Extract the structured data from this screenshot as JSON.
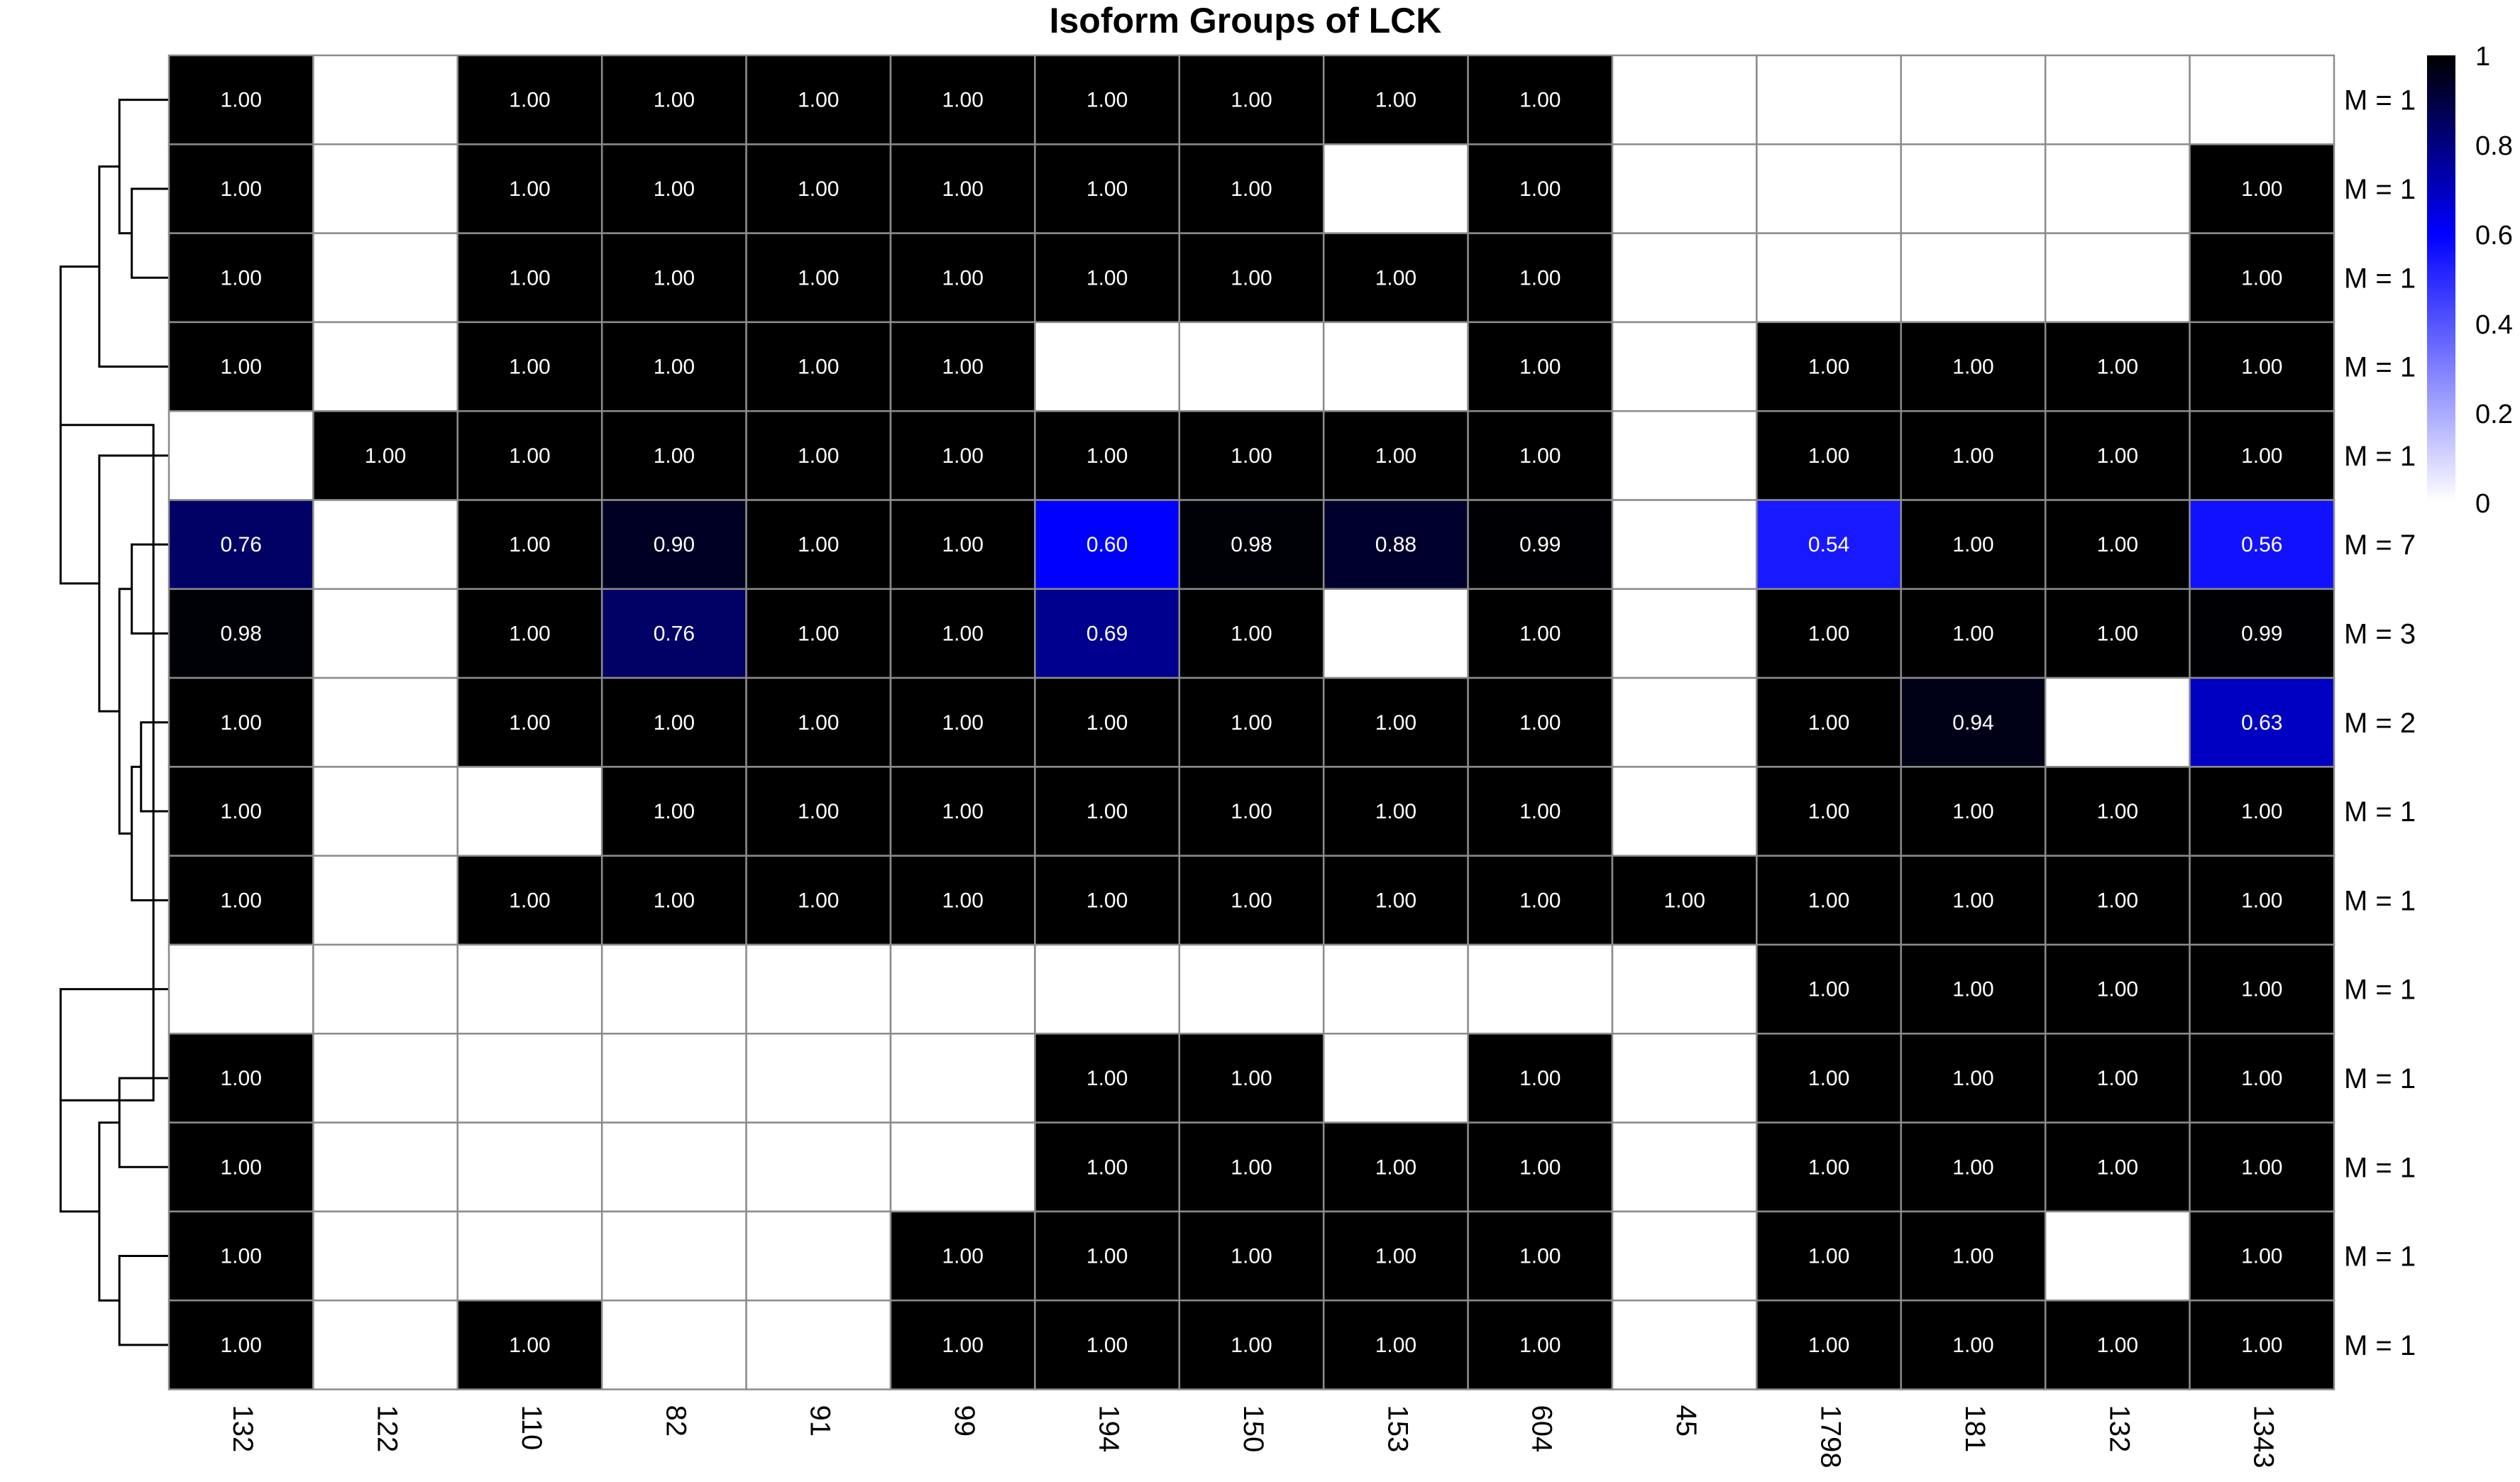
{
  "chart_data": {
    "type": "heatmap",
    "title": "Isoform Groups of LCK",
    "columns": [
      "132",
      "122",
      "110",
      "82",
      "91",
      "99",
      "194",
      "150",
      "153",
      "604",
      "45",
      "1798",
      "181",
      "132",
      "1343"
    ],
    "row_labels": [
      "M = 1",
      "M = 1",
      "M = 1",
      "M = 1",
      "M = 1",
      "M = 7",
      "M = 3",
      "M = 2",
      "M = 1",
      "M = 1",
      "M = 1",
      "M = 1",
      "M = 1",
      "M = 1",
      "M = 1"
    ],
    "values": [
      [
        1.0,
        null,
        1.0,
        1.0,
        1.0,
        1.0,
        1.0,
        1.0,
        1.0,
        1.0,
        null,
        null,
        null,
        null,
        null
      ],
      [
        1.0,
        null,
        1.0,
        1.0,
        1.0,
        1.0,
        1.0,
        1.0,
        null,
        1.0,
        null,
        null,
        null,
        null,
        1.0
      ],
      [
        1.0,
        null,
        1.0,
        1.0,
        1.0,
        1.0,
        1.0,
        1.0,
        1.0,
        1.0,
        null,
        null,
        null,
        null,
        1.0
      ],
      [
        1.0,
        null,
        1.0,
        1.0,
        1.0,
        1.0,
        null,
        null,
        null,
        1.0,
        null,
        1.0,
        1.0,
        1.0,
        1.0
      ],
      [
        null,
        1.0,
        1.0,
        1.0,
        1.0,
        1.0,
        1.0,
        1.0,
        1.0,
        1.0,
        null,
        1.0,
        1.0,
        1.0,
        1.0
      ],
      [
        0.76,
        null,
        1.0,
        0.9,
        1.0,
        1.0,
        0.6,
        0.98,
        0.88,
        0.99,
        null,
        0.54,
        1.0,
        1.0,
        0.56
      ],
      [
        0.98,
        null,
        1.0,
        0.76,
        1.0,
        1.0,
        0.69,
        1.0,
        null,
        1.0,
        null,
        1.0,
        1.0,
        1.0,
        0.99
      ],
      [
        1.0,
        null,
        1.0,
        1.0,
        1.0,
        1.0,
        1.0,
        1.0,
        1.0,
        1.0,
        null,
        1.0,
        0.94,
        null,
        0.63
      ],
      [
        1.0,
        null,
        null,
        1.0,
        1.0,
        1.0,
        1.0,
        1.0,
        1.0,
        1.0,
        null,
        1.0,
        1.0,
        1.0,
        1.0
      ],
      [
        1.0,
        null,
        1.0,
        1.0,
        1.0,
        1.0,
        1.0,
        1.0,
        1.0,
        1.0,
        1.0,
        1.0,
        1.0,
        1.0,
        1.0
      ],
      [
        null,
        null,
        null,
        null,
        null,
        null,
        null,
        null,
        null,
        null,
        null,
        1.0,
        1.0,
        1.0,
        1.0
      ],
      [
        1.0,
        null,
        null,
        null,
        null,
        null,
        1.0,
        1.0,
        null,
        1.0,
        null,
        1.0,
        1.0,
        1.0,
        1.0
      ],
      [
        1.0,
        null,
        null,
        null,
        null,
        null,
        1.0,
        1.0,
        1.0,
        1.0,
        null,
        1.0,
        1.0,
        1.0,
        1.0
      ],
      [
        1.0,
        null,
        null,
        null,
        null,
        1.0,
        1.0,
        1.0,
        1.0,
        1.0,
        null,
        1.0,
        1.0,
        null,
        1.0
      ],
      [
        1.0,
        null,
        1.0,
        null,
        null,
        1.0,
        1.0,
        1.0,
        1.0,
        1.0,
        null,
        1.0,
        1.0,
        1.0,
        1.0
      ]
    ],
    "color_scale": {
      "min": 0,
      "max": 1,
      "ticks": [
        "0",
        "0.2",
        "0.4",
        "0.6",
        "0.8",
        "1"
      ],
      "colors": [
        "#ffffff",
        "#0000ff",
        "#000000"
      ]
    },
    "cell_border_color": "#8c8c8c",
    "dendrogram": "left",
    "legend": "right"
  }
}
